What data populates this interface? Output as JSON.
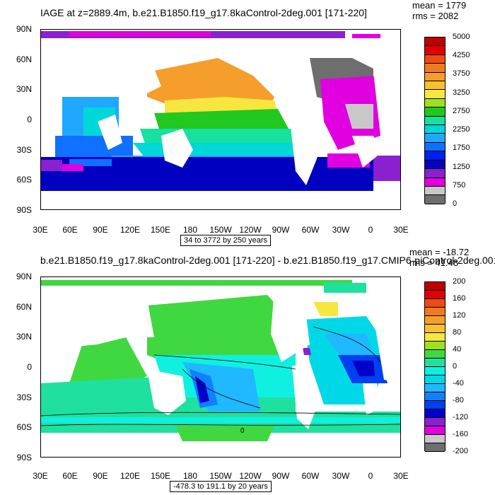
{
  "panels": [
    {
      "title": "IAGE at z=2889.4m, b.e21.B1850.f19_g17.8kaControl-2deg.001 [171-220]",
      "mean": "mean = 1779",
      "rms": "rms = 2082",
      "range": "34 to 3772 by 250 years",
      "lat_labels": [
        "90N",
        "60N",
        "30N",
        "0",
        "30S",
        "60S",
        "90S"
      ],
      "lon_labels": [
        "30E",
        "60E",
        "90E",
        "120E",
        "150E",
        "180",
        "150W",
        "120W",
        "90W",
        "60W",
        "30W",
        "0",
        "30E"
      ],
      "colorbar": {
        "labels": [
          "5000",
          "4250",
          "3750",
          "3250",
          "2750",
          "2250",
          "1750",
          "1250",
          "750",
          "0"
        ],
        "colors": [
          "#c00000",
          "#e00000",
          "#f04a14",
          "#f07a20",
          "#f59e2b",
          "#f8c030",
          "#f7e640",
          "#9fe020",
          "#20c820",
          "#18e0a0",
          "#00d8d8",
          "#20a8ff",
          "#1070ff",
          "#0020f0",
          "#0000c0",
          "#8a20d0",
          "#e000e0",
          "#c8c8c8",
          "#6e6e6e"
        ]
      }
    },
    {
      "title": "b.e21.B1850.f19_g17.8kaControl-2deg.001 [171-220] - b.e21.B1850.f19_g17.CMIP6-piControl-2deg.001",
      "mean": "mean = -18.72",
      "rms": "rms = 41.48",
      "range": "-478.3 to 191.1 by 20 years",
      "contour_label": "0",
      "lat_labels": [
        "90N",
        "60N",
        "30N",
        "0",
        "30S",
        "60S",
        "90S"
      ],
      "lon_labels": [
        "30E",
        "60E",
        "90E",
        "120E",
        "150E",
        "180",
        "150W",
        "120W",
        "90W",
        "60W",
        "30W",
        "0",
        "30E"
      ],
      "colorbar": {
        "labels": [
          "200",
          "160",
          "120",
          "80",
          "40",
          "0",
          "-40",
          "-80",
          "-120",
          "-160",
          "-200"
        ],
        "colors": [
          "#c00000",
          "#e00000",
          "#f04a14",
          "#f07a20",
          "#f59e2b",
          "#f8c030",
          "#f7e640",
          "#9fe020",
          "#40d840",
          "#20e0a0",
          "#10f0e0",
          "#00d8e8",
          "#20b8ff",
          "#1080ff",
          "#0040f0",
          "#0000c8",
          "#8a20d0",
          "#e000e0",
          "#c8c8c8",
          "#6e6e6e"
        ]
      }
    }
  ]
}
